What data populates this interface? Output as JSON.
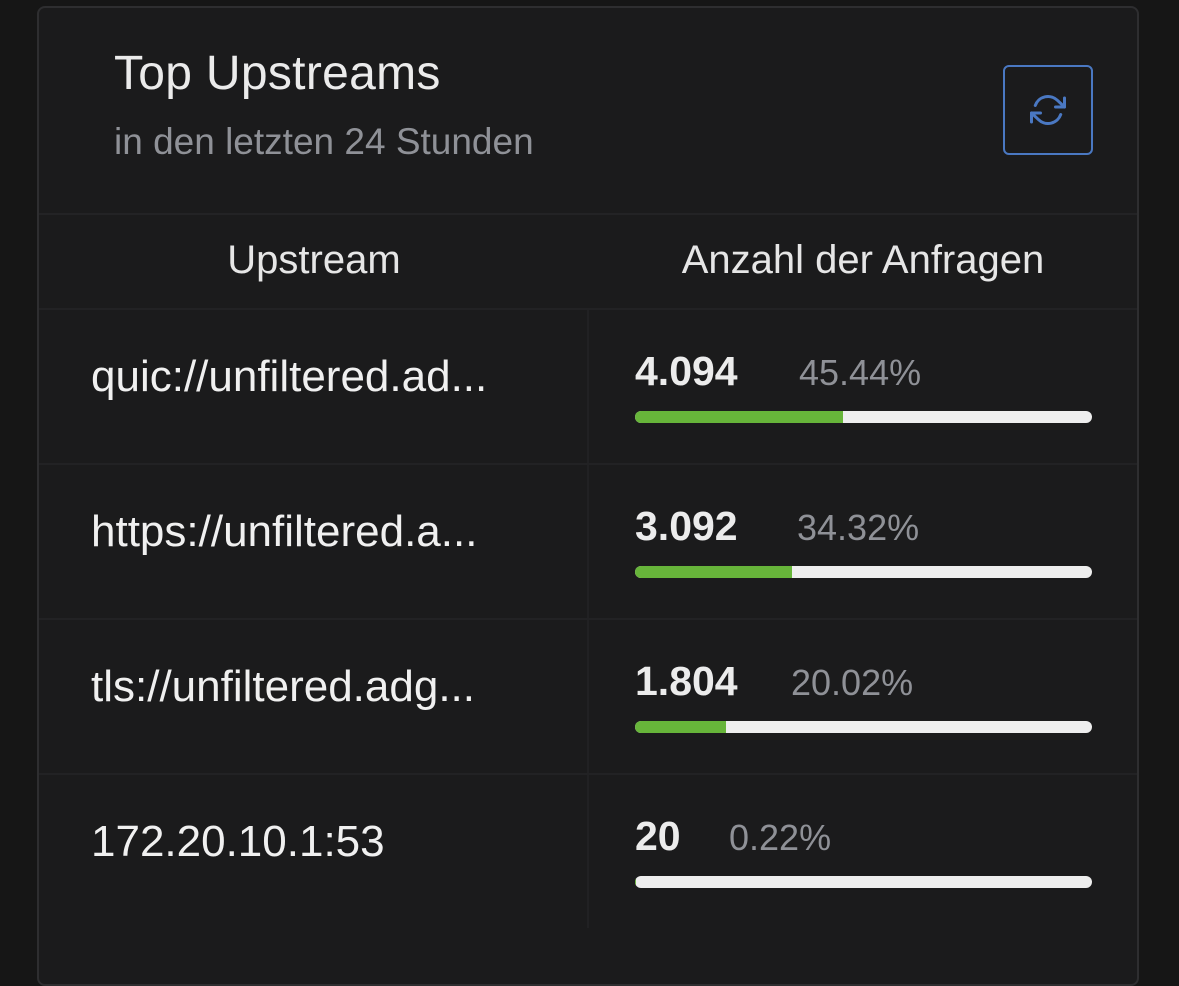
{
  "header": {
    "title": "Top Upstreams",
    "subtitle": "in den letzten 24 Stunden"
  },
  "refresh": {
    "icon": "refresh-icon",
    "color": "#4a78c2"
  },
  "table": {
    "columns": [
      "Upstream",
      "Anzahl der Anfragen"
    ],
    "rows": [
      {
        "upstream": "quic://unfiltered.ad...",
        "count": "4.094",
        "percent": "45.44%",
        "fraction": 0.4544
      },
      {
        "upstream": "https://unfiltered.a...",
        "count": "3.092",
        "percent": "34.32%",
        "fraction": 0.3432
      },
      {
        "upstream": "tls://unfiltered.adg...",
        "count": "1.804",
        "percent": "20.02%",
        "fraction": 0.2002
      },
      {
        "upstream": "172.20.10.1:53",
        "count": "20",
        "percent": "0.22%",
        "fraction": 0.0022
      }
    ]
  },
  "colors": {
    "bar_fill": "#67b53a",
    "bar_track": "#eeeeee"
  }
}
